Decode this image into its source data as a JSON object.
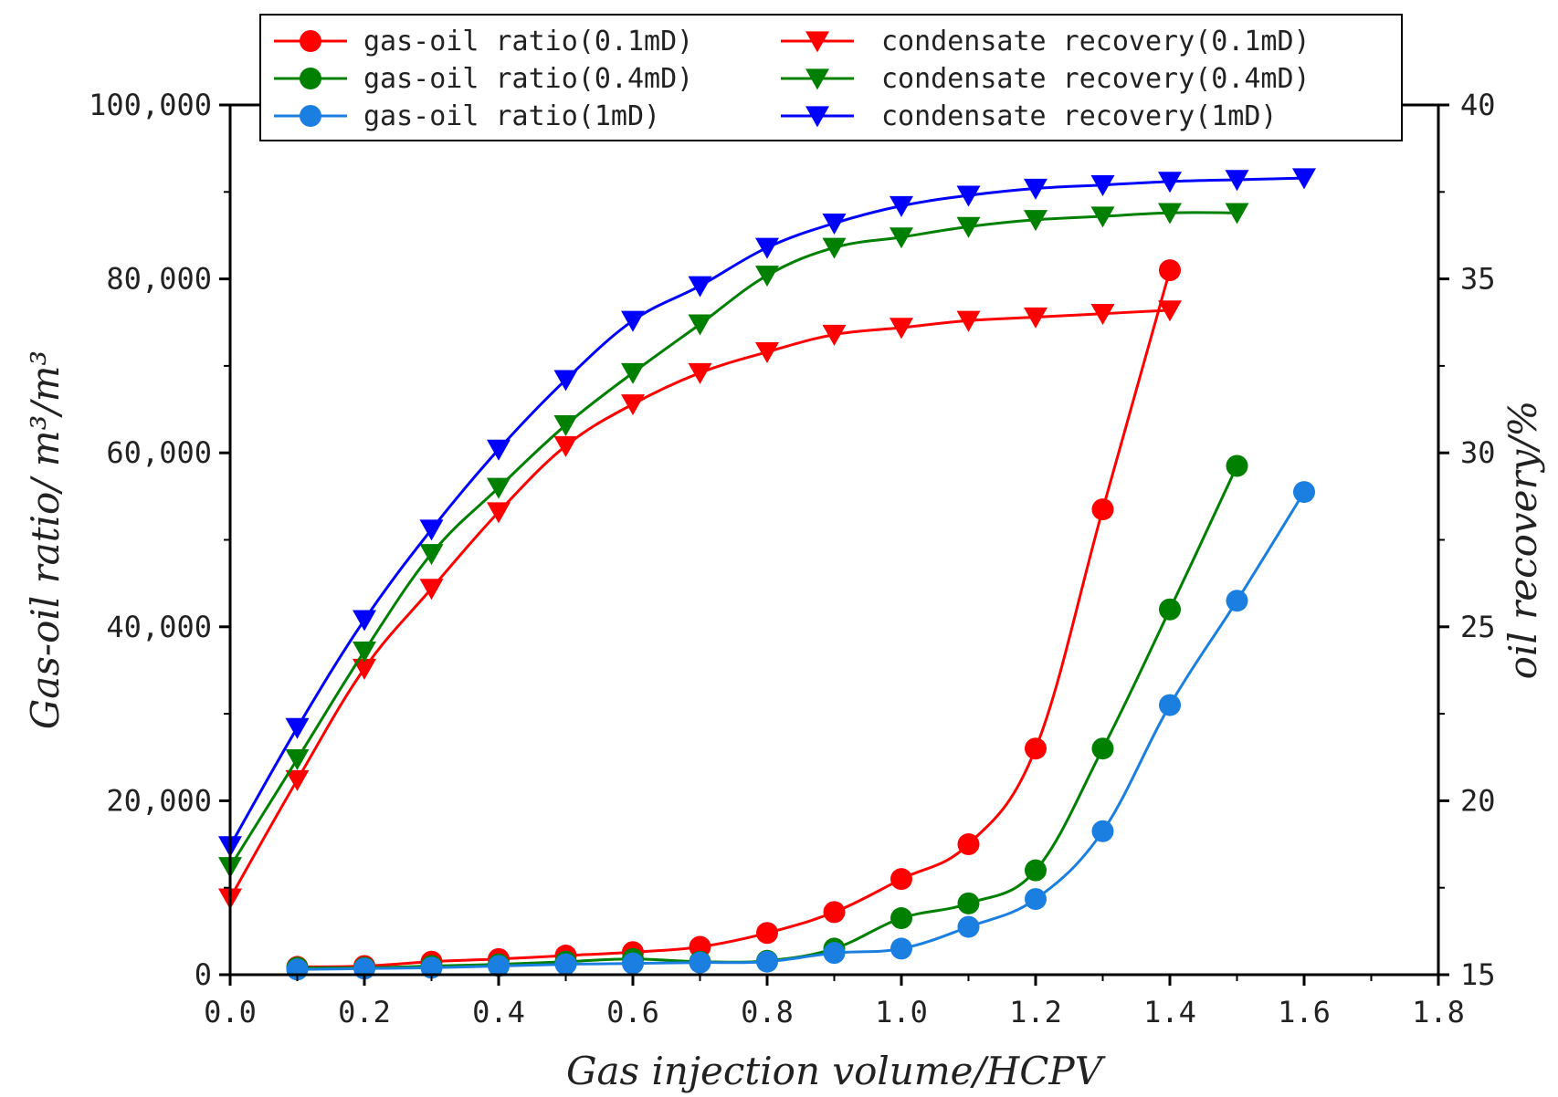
{
  "chart_data": {
    "type": "line",
    "title": "",
    "xlabel": "Gas injection volume/HCPV",
    "ylabel_left": "Gas-oil ratio/ m³/m³",
    "ylabel_right": "oil recovery/%",
    "xlim": [
      0,
      1.8
    ],
    "ylim_left": [
      0,
      100000
    ],
    "ylim_right": [
      15,
      40
    ],
    "x_ticks": [
      "0.0",
      "0.2",
      "0.4",
      "0.6",
      "0.8",
      "1.0",
      "1.2",
      "1.4",
      "1.6",
      "1.8"
    ],
    "y_left_ticks": [
      "0",
      "20,000",
      "40,000",
      "60,000",
      "80,000",
      "100,000"
    ],
    "y_right_ticks": [
      "15",
      "20",
      "25",
      "30",
      "35",
      "40"
    ],
    "legend_position": "top",
    "series": [
      {
        "name": "gas-oil ratio(0.1mD)",
        "axis": "left",
        "marker": "circle",
        "color": "#ff0000",
        "x": [
          0.1,
          0.2,
          0.3,
          0.4,
          0.5,
          0.6,
          0.7,
          0.8,
          0.9,
          1.0,
          1.1,
          1.2,
          1.3,
          1.4
        ],
        "values": [
          900,
          1000,
          1500,
          1800,
          2200,
          2600,
          3200,
          4800,
          7200,
          11000,
          15000,
          26000,
          53500,
          81000
        ]
      },
      {
        "name": "gas-oil ratio(0.4mD)",
        "axis": "left",
        "marker": "circle",
        "color": "#008000",
        "x": [
          0.1,
          0.2,
          0.3,
          0.4,
          0.5,
          0.6,
          0.7,
          0.8,
          0.9,
          1.0,
          1.1,
          1.2,
          1.3,
          1.4,
          1.5
        ],
        "values": [
          800,
          800,
          1000,
          1200,
          1500,
          1800,
          1500,
          1600,
          3000,
          6500,
          8200,
          12000,
          26000,
          42000,
          58500
        ]
      },
      {
        "name": "gas-oil ratio(1mD)",
        "axis": "left",
        "marker": "circle",
        "color": "#1a7fe0",
        "x": [
          0.1,
          0.2,
          0.3,
          0.4,
          0.5,
          0.6,
          0.7,
          0.8,
          0.9,
          1.0,
          1.1,
          1.2,
          1.3,
          1.4,
          1.5,
          1.6
        ],
        "values": [
          600,
          700,
          800,
          1000,
          1200,
          1300,
          1400,
          1500,
          2500,
          3000,
          5500,
          8700,
          16500,
          31000,
          43000,
          55500
        ]
      },
      {
        "name": "condensate recovery(0.1mD)",
        "axis": "right",
        "marker": "triangle-down",
        "color": "#ff0000",
        "x": [
          0.0,
          0.1,
          0.2,
          0.3,
          0.4,
          0.5,
          0.6,
          0.7,
          0.8,
          0.9,
          1.0,
          1.1,
          1.2,
          1.3,
          1.4
        ],
        "values": [
          17.2,
          20.6,
          23.8,
          26.1,
          28.3,
          30.2,
          31.4,
          32.3,
          32.9,
          33.4,
          33.6,
          33.8,
          33.9,
          34.0,
          34.1
        ]
      },
      {
        "name": "condensate recovery(0.4mD)",
        "axis": "right",
        "marker": "triangle-down",
        "color": "#008000",
        "x": [
          0.0,
          0.1,
          0.2,
          0.3,
          0.4,
          0.5,
          0.6,
          0.7,
          0.8,
          0.9,
          1.0,
          1.1,
          1.2,
          1.3,
          1.4,
          1.5
        ],
        "values": [
          18.1,
          21.2,
          24.3,
          27.1,
          29.0,
          30.8,
          32.3,
          33.7,
          35.1,
          35.9,
          36.2,
          36.5,
          36.7,
          36.8,
          36.9,
          36.9
        ]
      },
      {
        "name": "condensate recovery(1mD)",
        "axis": "right",
        "marker": "triangle-down",
        "color": "#0000ff",
        "x": [
          0.0,
          0.1,
          0.2,
          0.3,
          0.4,
          0.5,
          0.6,
          0.7,
          0.8,
          0.9,
          1.0,
          1.1,
          1.2,
          1.3,
          1.4,
          1.5,
          1.6
        ],
        "values": [
          18.7,
          22.1,
          25.2,
          27.8,
          30.1,
          32.1,
          33.8,
          34.8,
          35.9,
          36.6,
          37.1,
          37.4,
          37.6,
          37.7,
          37.8,
          37.85,
          37.9
        ]
      }
    ]
  }
}
